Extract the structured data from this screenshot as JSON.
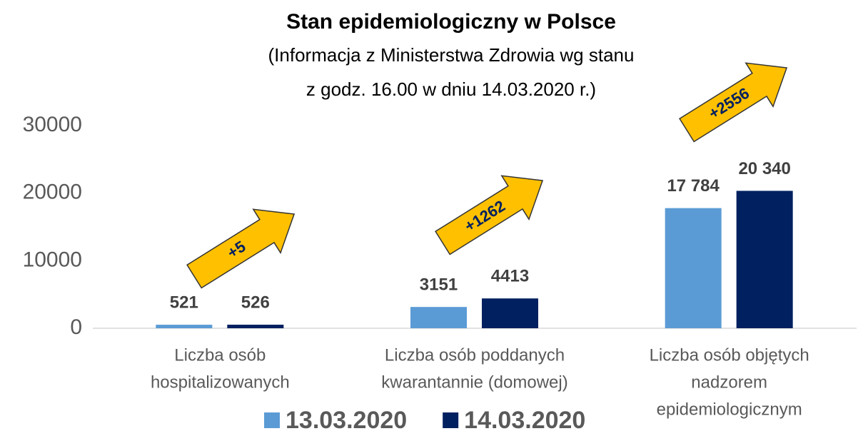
{
  "chart_data": {
    "type": "bar",
    "title": "Stan epidemiologiczny w Polsce",
    "subtitle": [
      "(Informacja z Ministerstwa Zdrowia wg stanu",
      "z godz. 16.00 w dniu 14.03.2020 r.)"
    ],
    "categories": [
      [
        "Liczba osób",
        "hospitalizowanych"
      ],
      [
        "Liczba osób poddanych",
        "kwarantannie (domowej)"
      ],
      [
        "Liczba osób objętych",
        "nadzorem",
        "epidemiologicznym"
      ]
    ],
    "series": [
      {
        "name": "13.03.2020",
        "color": "#5b9bd5",
        "values": [
          521,
          3151,
          17784
        ],
        "value_labels": [
          "521",
          "3151",
          "17 784"
        ]
      },
      {
        "name": "14.03.2020",
        "color": "#002060",
        "values": [
          526,
          4413,
          20340
        ],
        "value_labels": [
          "526",
          "4413",
          "20 340"
        ]
      }
    ],
    "annotations": [
      "+5",
      "+1262",
      "+2556"
    ],
    "ylim": [
      0,
      30000
    ],
    "yticks": [
      0,
      10000,
      20000,
      30000
    ],
    "grid": false,
    "legend": "bottom"
  }
}
